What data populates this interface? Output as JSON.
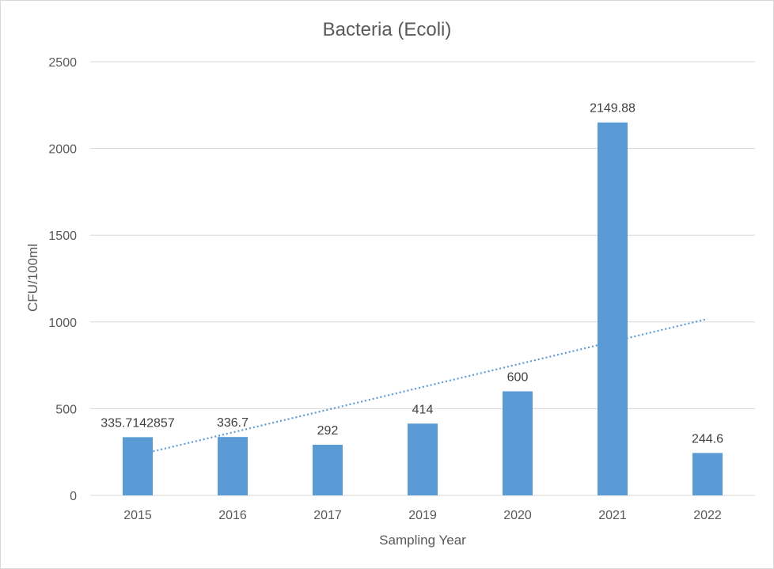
{
  "chart_data": {
    "type": "bar",
    "title": "Bacteria (Ecoli)",
    "xlabel": "Sampling Year",
    "ylabel": "CFU/100ml",
    "categories": [
      "2015",
      "2016",
      "2017",
      "2019",
      "2020",
      "2021",
      "2022"
    ],
    "values": [
      335.7142857,
      336.7,
      292,
      414,
      600,
      2149.88,
      244.6
    ],
    "data_labels": [
      "335.7142857",
      "336.7",
      "292",
      "414",
      "600",
      "2149.88",
      "244.6"
    ],
    "ylim": [
      0,
      2500
    ],
    "yticks": [
      "0",
      "500",
      "1000",
      "1500",
      "2000",
      "2500"
    ],
    "grid": true,
    "legend": "none",
    "trendline": {
      "type": "linear",
      "style": "dotted"
    },
    "colors": {
      "bar": "#5b9bd5",
      "trendline": "#5b9bd5",
      "grid": "#d9d9d9"
    }
  }
}
